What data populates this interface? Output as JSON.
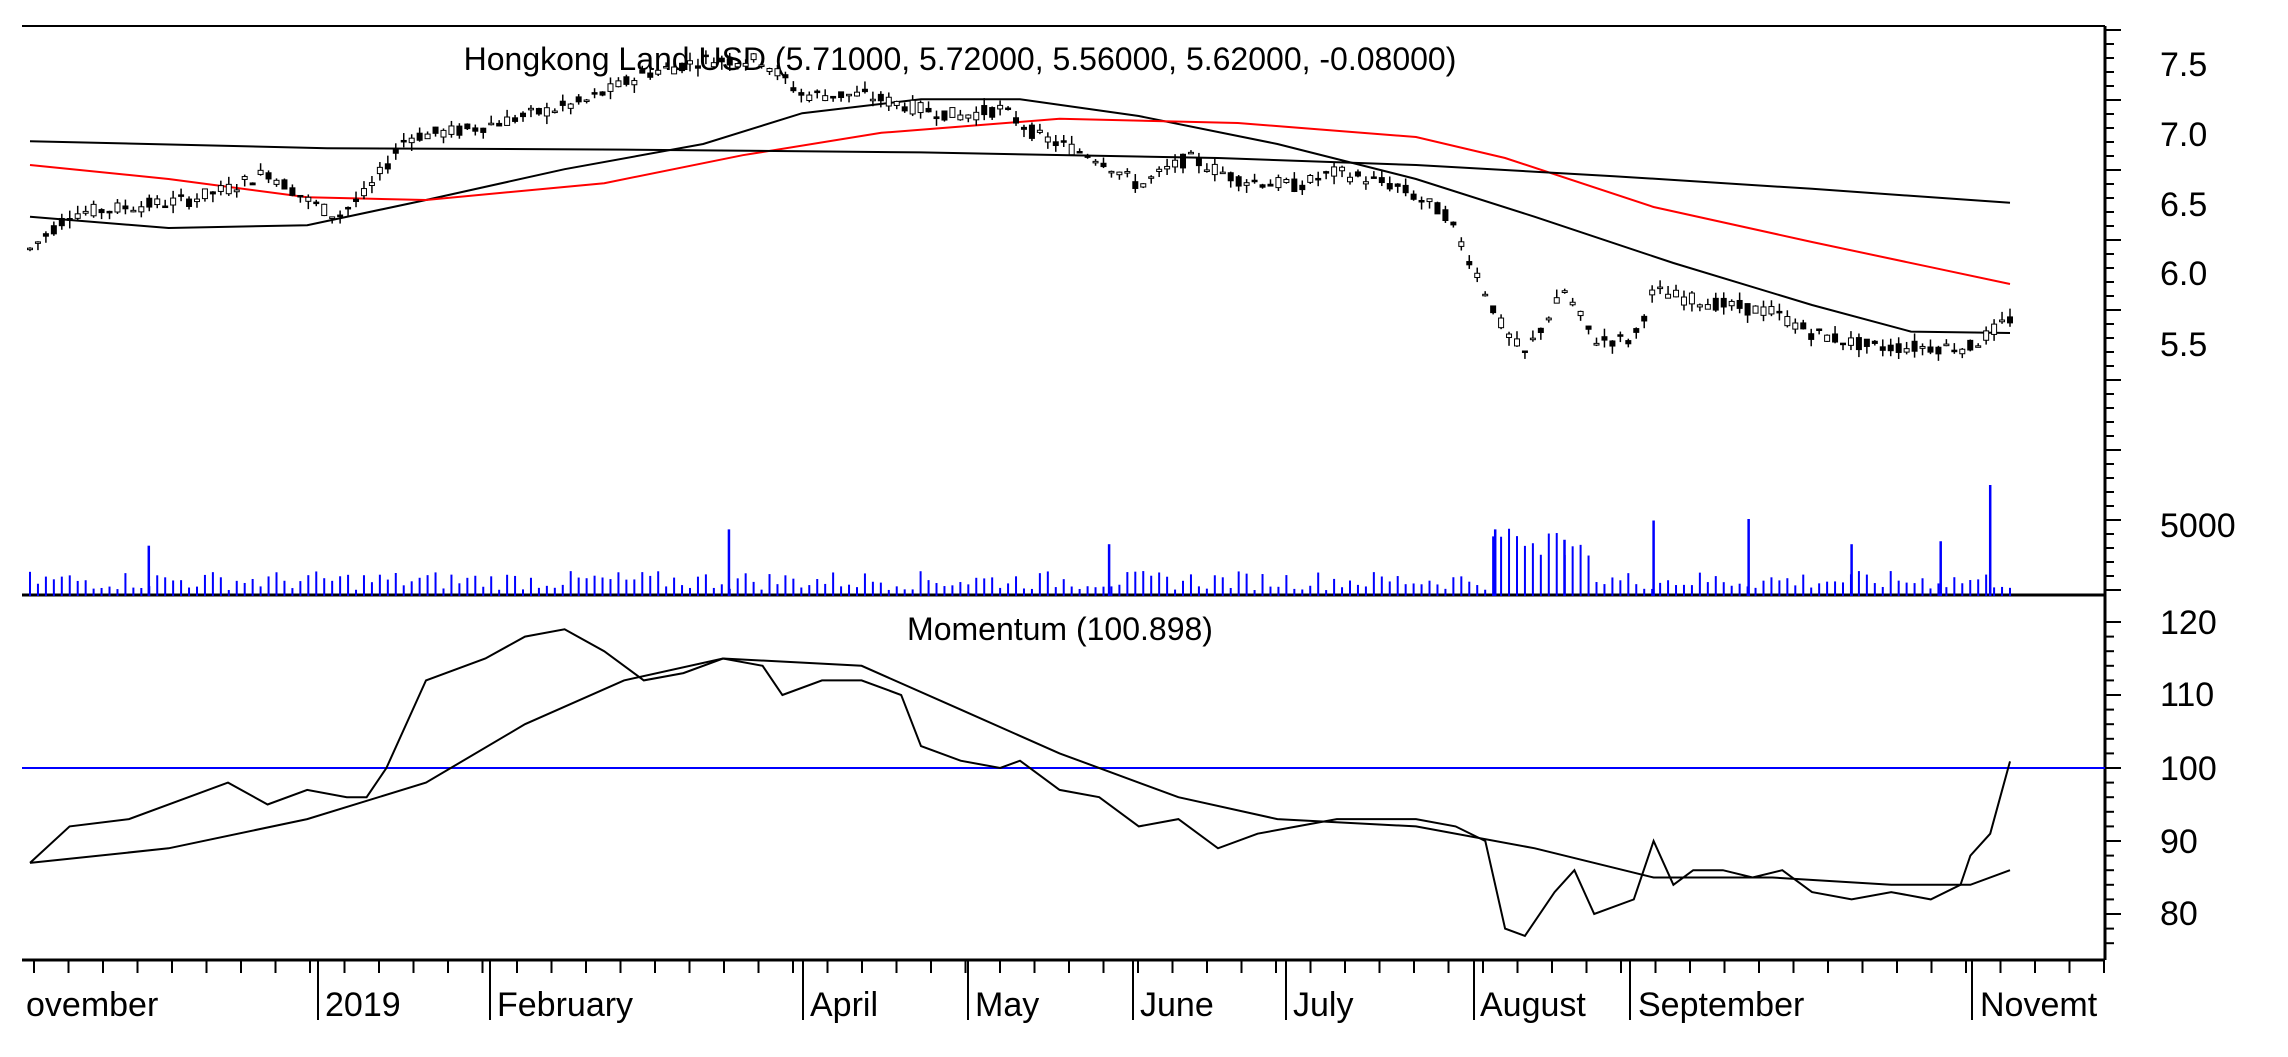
{
  "chart_data": [
    {
      "type": "candlestick",
      "title": "Hongkong Land USD (5.71000, 5.72000, 5.56000, 5.62000, -0.08000)",
      "ylim": [
        5.0,
        7.75
      ],
      "yticks": [
        "7.5",
        "7.0",
        "6.5",
        "6.0",
        "5.5"
      ],
      "grid": false,
      "price_anchors": [
        {
          "x": 0,
          "y": 6.15
        },
        {
          "x": 0.02,
          "y": 6.4
        },
        {
          "x": 0.05,
          "y": 6.45
        },
        {
          "x": 0.08,
          "y": 6.5
        },
        {
          "x": 0.1,
          "y": 6.58
        },
        {
          "x": 0.12,
          "y": 6.7
        },
        {
          "x": 0.14,
          "y": 6.5
        },
        {
          "x": 0.155,
          "y": 6.38
        },
        {
          "x": 0.17,
          "y": 6.55
        },
        {
          "x": 0.19,
          "y": 6.95
        },
        {
          "x": 0.22,
          "y": 7.0
        },
        {
          "x": 0.25,
          "y": 7.1
        },
        {
          "x": 0.28,
          "y": 7.2
        },
        {
          "x": 0.31,
          "y": 7.4
        },
        {
          "x": 0.34,
          "y": 7.5
        },
        {
          "x": 0.37,
          "y": 7.5
        },
        {
          "x": 0.39,
          "y": 7.25
        },
        {
          "x": 0.42,
          "y": 7.25
        },
        {
          "x": 0.45,
          "y": 7.15
        },
        {
          "x": 0.47,
          "y": 7.1
        },
        {
          "x": 0.49,
          "y": 7.15
        },
        {
          "x": 0.51,
          "y": 6.95
        },
        {
          "x": 0.54,
          "y": 6.8
        },
        {
          "x": 0.56,
          "y": 6.6
        },
        {
          "x": 0.585,
          "y": 6.8
        },
        {
          "x": 0.61,
          "y": 6.65
        },
        {
          "x": 0.64,
          "y": 6.6
        },
        {
          "x": 0.66,
          "y": 6.7
        },
        {
          "x": 0.69,
          "y": 6.6
        },
        {
          "x": 0.715,
          "y": 6.4
        },
        {
          "x": 0.73,
          "y": 6.0
        },
        {
          "x": 0.745,
          "y": 5.55
        },
        {
          "x": 0.755,
          "y": 5.4
        },
        {
          "x": 0.775,
          "y": 5.85
        },
        {
          "x": 0.79,
          "y": 5.5
        },
        {
          "x": 0.81,
          "y": 5.5
        },
        {
          "x": 0.82,
          "y": 5.85
        },
        {
          "x": 0.835,
          "y": 5.8
        },
        {
          "x": 0.855,
          "y": 5.75
        },
        {
          "x": 0.88,
          "y": 5.7
        },
        {
          "x": 0.9,
          "y": 5.55
        },
        {
          "x": 0.93,
          "y": 5.45
        },
        {
          "x": 0.96,
          "y": 5.45
        },
        {
          "x": 0.98,
          "y": 5.45
        },
        {
          "x": 1.0,
          "y": 5.65
        }
      ],
      "series": [
        {
          "color": "#000000",
          "values": [
            {
              "x": 0,
              "y": 6.38
            },
            {
              "x": 0.07,
              "y": 6.3
            },
            {
              "x": 0.14,
              "y": 6.32
            },
            {
              "x": 0.2,
              "y": 6.5
            },
            {
              "x": 0.27,
              "y": 6.72
            },
            {
              "x": 0.34,
              "y": 6.9
            },
            {
              "x": 0.39,
              "y": 7.12
            },
            {
              "x": 0.45,
              "y": 7.22
            },
            {
              "x": 0.5,
              "y": 7.22
            },
            {
              "x": 0.56,
              "y": 7.1
            },
            {
              "x": 0.63,
              "y": 6.9
            },
            {
              "x": 0.7,
              "y": 6.65
            },
            {
              "x": 0.76,
              "y": 6.38
            },
            {
              "x": 0.83,
              "y": 6.05
            },
            {
              "x": 0.9,
              "y": 5.75
            },
            {
              "x": 0.95,
              "y": 5.56
            },
            {
              "x": 1.0,
              "y": 5.55
            }
          ]
        },
        {
          "color": "#ff0000",
          "values": [
            {
              "x": 0,
              "y": 6.75
            },
            {
              "x": 0.07,
              "y": 6.65
            },
            {
              "x": 0.14,
              "y": 6.52
            },
            {
              "x": 0.2,
              "y": 6.5
            },
            {
              "x": 0.29,
              "y": 6.62
            },
            {
              "x": 0.36,
              "y": 6.82
            },
            {
              "x": 0.43,
              "y": 6.98
            },
            {
              "x": 0.52,
              "y": 7.08
            },
            {
              "x": 0.61,
              "y": 7.05
            },
            {
              "x": 0.7,
              "y": 6.95
            },
            {
              "x": 0.745,
              "y": 6.8
            },
            {
              "x": 0.82,
              "y": 6.45
            },
            {
              "x": 0.9,
              "y": 6.2
            },
            {
              "x": 0.96,
              "y": 6.02
            },
            {
              "x": 1.0,
              "y": 5.9
            }
          ]
        },
        {
          "color": "#000000",
          "values": [
            {
              "x": 0,
              "y": 6.92
            },
            {
              "x": 0.15,
              "y": 6.87
            },
            {
              "x": 0.3,
              "y": 6.86
            },
            {
              "x": 0.45,
              "y": 6.84
            },
            {
              "x": 0.6,
              "y": 6.8
            },
            {
              "x": 0.7,
              "y": 6.75
            },
            {
              "x": 0.8,
              "y": 6.67
            },
            {
              "x": 0.9,
              "y": 6.58
            },
            {
              "x": 1.0,
              "y": 6.48
            }
          ]
        }
      ]
    },
    {
      "type": "bar",
      "ylim": [
        0,
        10000
      ],
      "yticks": [
        "5000"
      ],
      "bar_color": "#0000ff",
      "spikes": [
        {
          "x": 0.06,
          "y": 3400
        },
        {
          "x": 0.353,
          "y": 4500
        },
        {
          "x": 0.545,
          "y": 3500
        },
        {
          "x": 0.74,
          "y": 4500
        },
        {
          "x": 0.775,
          "y": 3800
        },
        {
          "x": 0.82,
          "y": 5100
        },
        {
          "x": 0.868,
          "y": 5200
        },
        {
          "x": 0.92,
          "y": 3500
        },
        {
          "x": 0.965,
          "y": 3700
        },
        {
          "x": 0.99,
          "y": 7500
        }
      ],
      "cluster": {
        "x_start": 0.735,
        "x_end": 0.79,
        "y": 4200
      }
    },
    {
      "type": "line",
      "title": "Momentum (100.898)",
      "ylim": [
        75,
        122
      ],
      "yticks": [
        "120",
        "110",
        "100",
        "90",
        "80"
      ],
      "hline": {
        "value": 100,
        "color": "#0000ff"
      },
      "series": [
        {
          "color": "#000000",
          "values": [
            {
              "x": 0,
              "y": 87
            },
            {
              "x": 0.02,
              "y": 92
            },
            {
              "x": 0.05,
              "y": 93
            },
            {
              "x": 0.08,
              "y": 96
            },
            {
              "x": 0.1,
              "y": 98
            },
            {
              "x": 0.12,
              "y": 95
            },
            {
              "x": 0.14,
              "y": 97
            },
            {
              "x": 0.16,
              "y": 96
            },
            {
              "x": 0.17,
              "y": 96
            },
            {
              "x": 0.18,
              "y": 100
            },
            {
              "x": 0.2,
              "y": 112
            },
            {
              "x": 0.23,
              "y": 115
            },
            {
              "x": 0.25,
              "y": 118
            },
            {
              "x": 0.27,
              "y": 119
            },
            {
              "x": 0.29,
              "y": 116
            },
            {
              "x": 0.31,
              "y": 112
            },
            {
              "x": 0.33,
              "y": 113
            },
            {
              "x": 0.35,
              "y": 115
            },
            {
              "x": 0.37,
              "y": 114
            },
            {
              "x": 0.38,
              "y": 110
            },
            {
              "x": 0.4,
              "y": 112
            },
            {
              "x": 0.42,
              "y": 112
            },
            {
              "x": 0.44,
              "y": 110
            },
            {
              "x": 0.45,
              "y": 103
            },
            {
              "x": 0.47,
              "y": 101
            },
            {
              "x": 0.49,
              "y": 100
            },
            {
              "x": 0.5,
              "y": 101
            },
            {
              "x": 0.52,
              "y": 97
            },
            {
              "x": 0.54,
              "y": 96
            },
            {
              "x": 0.56,
              "y": 92
            },
            {
              "x": 0.58,
              "y": 93
            },
            {
              "x": 0.6,
              "y": 89
            },
            {
              "x": 0.62,
              "y": 91
            },
            {
              "x": 0.64,
              "y": 92
            },
            {
              "x": 0.66,
              "y": 93
            },
            {
              "x": 0.68,
              "y": 93
            },
            {
              "x": 0.7,
              "y": 93
            },
            {
              "x": 0.72,
              "y": 92
            },
            {
              "x": 0.735,
              "y": 90
            },
            {
              "x": 0.745,
              "y": 78
            },
            {
              "x": 0.755,
              "y": 77
            },
            {
              "x": 0.77,
              "y": 83
            },
            {
              "x": 0.78,
              "y": 86
            },
            {
              "x": 0.79,
              "y": 80
            },
            {
              "x": 0.81,
              "y": 82
            },
            {
              "x": 0.82,
              "y": 90
            },
            {
              "x": 0.83,
              "y": 84
            },
            {
              "x": 0.84,
              "y": 86
            },
            {
              "x": 0.855,
              "y": 86
            },
            {
              "x": 0.87,
              "y": 85
            },
            {
              "x": 0.885,
              "y": 86
            },
            {
              "x": 0.9,
              "y": 83
            },
            {
              "x": 0.92,
              "y": 82
            },
            {
              "x": 0.94,
              "y": 83
            },
            {
              "x": 0.96,
              "y": 82
            },
            {
              "x": 0.975,
              "y": 84
            },
            {
              "x": 0.98,
              "y": 88
            },
            {
              "x": 0.99,
              "y": 91
            },
            {
              "x": 1.0,
              "y": 100.898
            }
          ]
        },
        {
          "color": "#000000",
          "values": [
            {
              "x": 0,
              "y": 87
            },
            {
              "x": 0.07,
              "y": 89
            },
            {
              "x": 0.14,
              "y": 93
            },
            {
              "x": 0.2,
              "y": 98
            },
            {
              "x": 0.25,
              "y": 106
            },
            {
              "x": 0.3,
              "y": 112
            },
            {
              "x": 0.35,
              "y": 115
            },
            {
              "x": 0.42,
              "y": 114
            },
            {
              "x": 0.47,
              "y": 108
            },
            {
              "x": 0.52,
              "y": 102
            },
            {
              "x": 0.58,
              "y": 96
            },
            {
              "x": 0.63,
              "y": 93
            },
            {
              "x": 0.7,
              "y": 92
            },
            {
              "x": 0.76,
              "y": 89
            },
            {
              "x": 0.82,
              "y": 85
            },
            {
              "x": 0.88,
              "y": 85
            },
            {
              "x": 0.94,
              "y": 84
            },
            {
              "x": 0.98,
              "y": 84
            },
            {
              "x": 1.0,
              "y": 86
            }
          ]
        }
      ]
    }
  ],
  "x_axis": {
    "labels": [
      {
        "text": "ovember",
        "x": 0.0
      },
      {
        "text": "2019",
        "x": 0.145
      },
      {
        "text": "February",
        "x": 0.232
      },
      {
        "text": "April",
        "x": 0.39
      },
      {
        "text": "May",
        "x": 0.47
      },
      {
        "text": "June",
        "x": 0.555
      },
      {
        "text": "July",
        "x": 0.63
      },
      {
        "text": "August",
        "x": 0.72
      },
      {
        "text": "September",
        "x": 0.8
      },
      {
        "text": "Novemt",
        "x": 0.97
      }
    ]
  }
}
